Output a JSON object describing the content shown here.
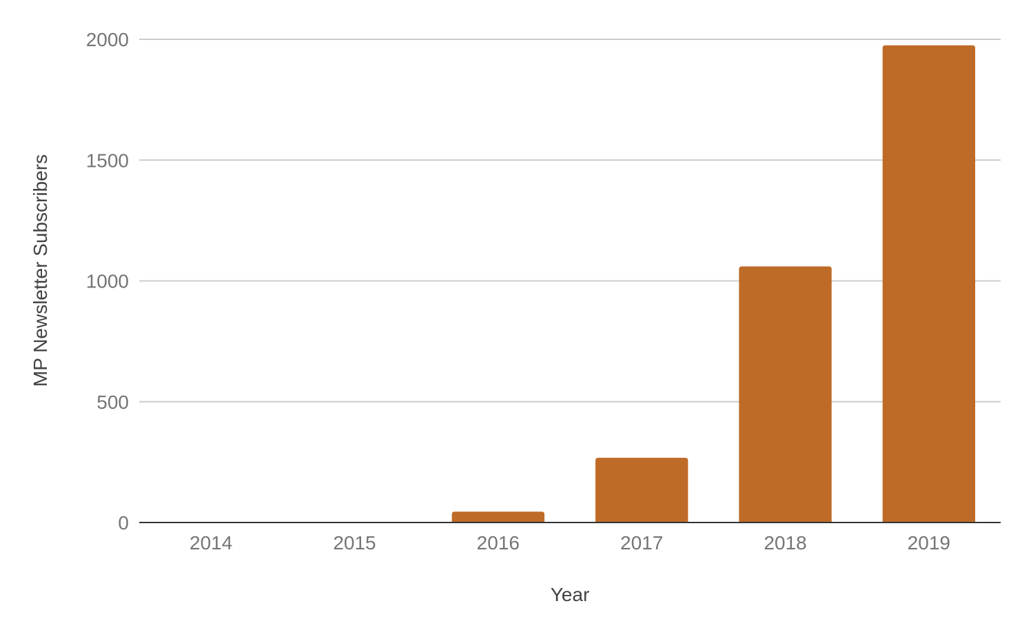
{
  "chart_data": {
    "type": "bar",
    "title": "",
    "xlabel": "Year",
    "ylabel": "MP Newsletter Subscribers",
    "categories": [
      "2014",
      "2015",
      "2016",
      "2017",
      "2018",
      "2019"
    ],
    "values": [
      0,
      0,
      45,
      268,
      1060,
      1975
    ],
    "ylim": [
      0,
      2000
    ],
    "yticks": [
      0,
      500,
      1000,
      1500,
      2000
    ],
    "grid": true,
    "legend": "none",
    "bar_color": "#BF6B28",
    "gridline_color": "#CCCCCC",
    "baseline_color": "#333333"
  }
}
